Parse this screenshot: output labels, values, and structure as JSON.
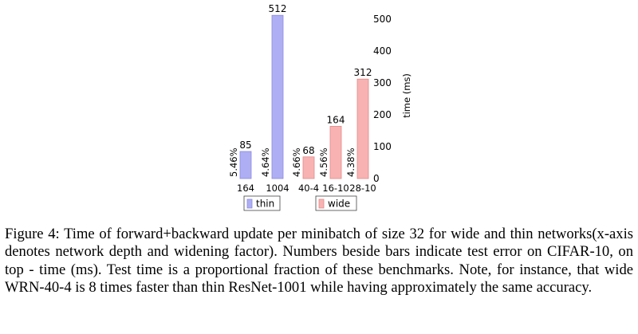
{
  "chart_data": {
    "type": "bar",
    "y_axis": {
      "label": "time (ms)",
      "min": 0,
      "max": 500,
      "ticks": [
        0,
        100,
        200,
        300,
        400,
        500
      ],
      "side": "right"
    },
    "groups": [
      {
        "name": "thin",
        "color": "#aeaef4",
        "bars": [
          {
            "category": "164",
            "time_ms": 85,
            "error": "5.46%"
          },
          {
            "category": "1004",
            "time_ms": 512,
            "error": "4.64%"
          }
        ]
      },
      {
        "name": "wide",
        "color": "#f9b2b2",
        "bars": [
          {
            "category": "40-4",
            "time_ms": 68,
            "error": "4.66%"
          },
          {
            "category": "16-10",
            "time_ms": 164,
            "error": "4.56%"
          },
          {
            "category": "28-10",
            "time_ms": 312,
            "error": "4.38%"
          }
        ]
      }
    ],
    "legend_placement": "bottom"
  },
  "caption": "Figure 4: Time of forward+backward update per minibatch of size 32 for wide and thin networks(x-axis denotes network depth and widening factor). Numbers beside bars indicate test error on CIFAR-10, on top - time (ms). Test time is a proportional fraction of these benchmarks. Note, for instance, that wide WRN-40-4 is 8 times faster than thin ResNet-1001 while having approximately the same accuracy."
}
